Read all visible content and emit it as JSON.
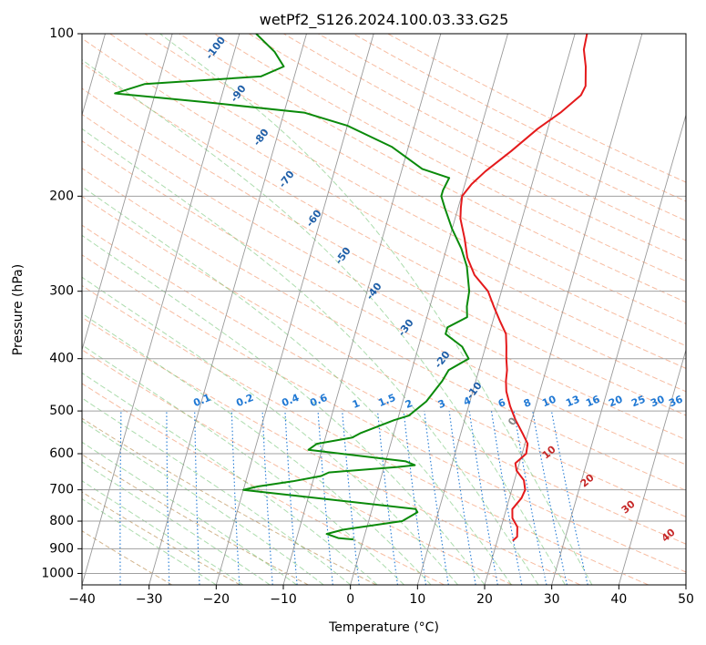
{
  "chart_data": {
    "type": "line",
    "subtype": "skew-T log-P diagram",
    "title": "wetPf2_S126.2024.100.03.33.G25",
    "xlabel": "Temperature (°C)",
    "ylabel": "Pressure (hPa)",
    "xlim": [
      -40,
      50
    ],
    "ylim": [
      1050,
      100
    ],
    "yscale": "log",
    "x_ticks": [
      "−40",
      "−30",
      "−20",
      "−10",
      "0",
      "10",
      "20",
      "30",
      "40",
      "50"
    ],
    "y_ticks": [
      "100",
      "200",
      "300",
      "400",
      "500",
      "600",
      "700",
      "800",
      "900",
      "1000"
    ],
    "grid": true,
    "colors": {
      "temperature": "#e41a1c",
      "dewpoint": "#0a8a0a",
      "isotherm": "#888888",
      "dry_adiabat": "#f4a582",
      "moist_adiabat": "#74c476",
      "mixing_ratio": "#1f78d4",
      "dry_adiabat_curves": "#d2b48c",
      "isotherm_label": "#1f5fa8",
      "moist_label": "#c62828"
    },
    "series": [
      {
        "role": "temperature",
        "points": [
          [
            22.3,
            870
          ],
          [
            22.8,
            855
          ],
          [
            22.4,
            820
          ],
          [
            21.3,
            790
          ],
          [
            20.9,
            760
          ],
          [
            21.8,
            725
          ],
          [
            22.0,
            700
          ],
          [
            21.4,
            672
          ],
          [
            19.9,
            645
          ],
          [
            19.4,
            625
          ],
          [
            20.6,
            600
          ],
          [
            20.4,
            575
          ],
          [
            19.2,
            550
          ],
          [
            17.6,
            520
          ],
          [
            16.2,
            490
          ],
          [
            15.0,
            460
          ],
          [
            14.5,
            440
          ],
          [
            14.2,
            420
          ],
          [
            13.6,
            400
          ],
          [
            13.1,
            380
          ],
          [
            12.5,
            360
          ],
          [
            11.0,
            340
          ],
          [
            9.5,
            320
          ],
          [
            8.0,
            300
          ],
          [
            5.3,
            280
          ],
          [
            3.5,
            260
          ],
          [
            2.3,
            240
          ],
          [
            0.8,
            220
          ],
          [
            0.4,
            210
          ],
          [
            0.1,
            200
          ],
          [
            1.0,
            190
          ],
          [
            2.5,
            180
          ],
          [
            5.5,
            165
          ],
          [
            8.5,
            150
          ],
          [
            11.2,
            140
          ],
          [
            13.5,
            130
          ],
          [
            13.8,
            125
          ],
          [
            13.0,
            115
          ],
          [
            12.0,
            107
          ],
          [
            11.8,
            100
          ]
        ]
      },
      {
        "role": "dewpoint",
        "points": [
          [
            -1.5,
            865
          ],
          [
            -3.8,
            860
          ],
          [
            -5.7,
            845
          ],
          [
            -3.5,
            830
          ],
          [
            5.0,
            800
          ],
          [
            6.9,
            770
          ],
          [
            6.5,
            760
          ],
          [
            -20.0,
            700
          ],
          [
            -18.0,
            690
          ],
          [
            -13.0,
            675
          ],
          [
            -9.0,
            660
          ],
          [
            -8.0,
            650
          ],
          [
            2.0,
            635
          ],
          [
            4.5,
            630
          ],
          [
            3.0,
            620
          ],
          [
            -12.0,
            590
          ],
          [
            -11.0,
            575
          ],
          [
            -6.0,
            560
          ],
          [
            -5.0,
            550
          ],
          [
            -0.5,
            520
          ],
          [
            1.5,
            510
          ],
          [
            3.5,
            480
          ],
          [
            5.0,
            440
          ],
          [
            5.5,
            420
          ],
          [
            8.0,
            400
          ],
          [
            6.5,
            380
          ],
          [
            3.5,
            360
          ],
          [
            3.5,
            350
          ],
          [
            6.0,
            335
          ],
          [
            5.5,
            320
          ],
          [
            5.2,
            300
          ],
          [
            3.8,
            270
          ],
          [
            2.2,
            250
          ],
          [
            0.0,
            230
          ],
          [
            -2.0,
            210
          ],
          [
            -3.0,
            200
          ],
          [
            -3.0,
            195
          ],
          [
            -2.6,
            185
          ],
          [
            -7.0,
            178
          ],
          [
            -12.5,
            162
          ],
          [
            -20.0,
            148
          ],
          [
            -27.0,
            140
          ],
          [
            -42.0,
            134
          ],
          [
            -56.0,
            129
          ],
          [
            -52.0,
            124
          ],
          [
            -35.0,
            120
          ],
          [
            -32.0,
            115
          ],
          [
            -34.0,
            108
          ],
          [
            -37.5,
            100
          ]
        ]
      }
    ],
    "isotherm_labels": [
      "-100",
      "-90",
      "-80",
      "-70",
      "-60",
      "-50",
      "-40",
      "-30",
      "-20",
      "-10"
    ],
    "zero_label": "0",
    "moist_labels": [
      "10",
      "20",
      "30",
      "40"
    ],
    "mixing_ratio_labels": [
      "0.1",
      "0.2",
      "0.4",
      "0.6",
      "1",
      "1.5",
      "2",
      "3",
      "4",
      "6",
      "8",
      "10",
      "13",
      "16",
      "20",
      "25",
      "30",
      "36"
    ]
  }
}
